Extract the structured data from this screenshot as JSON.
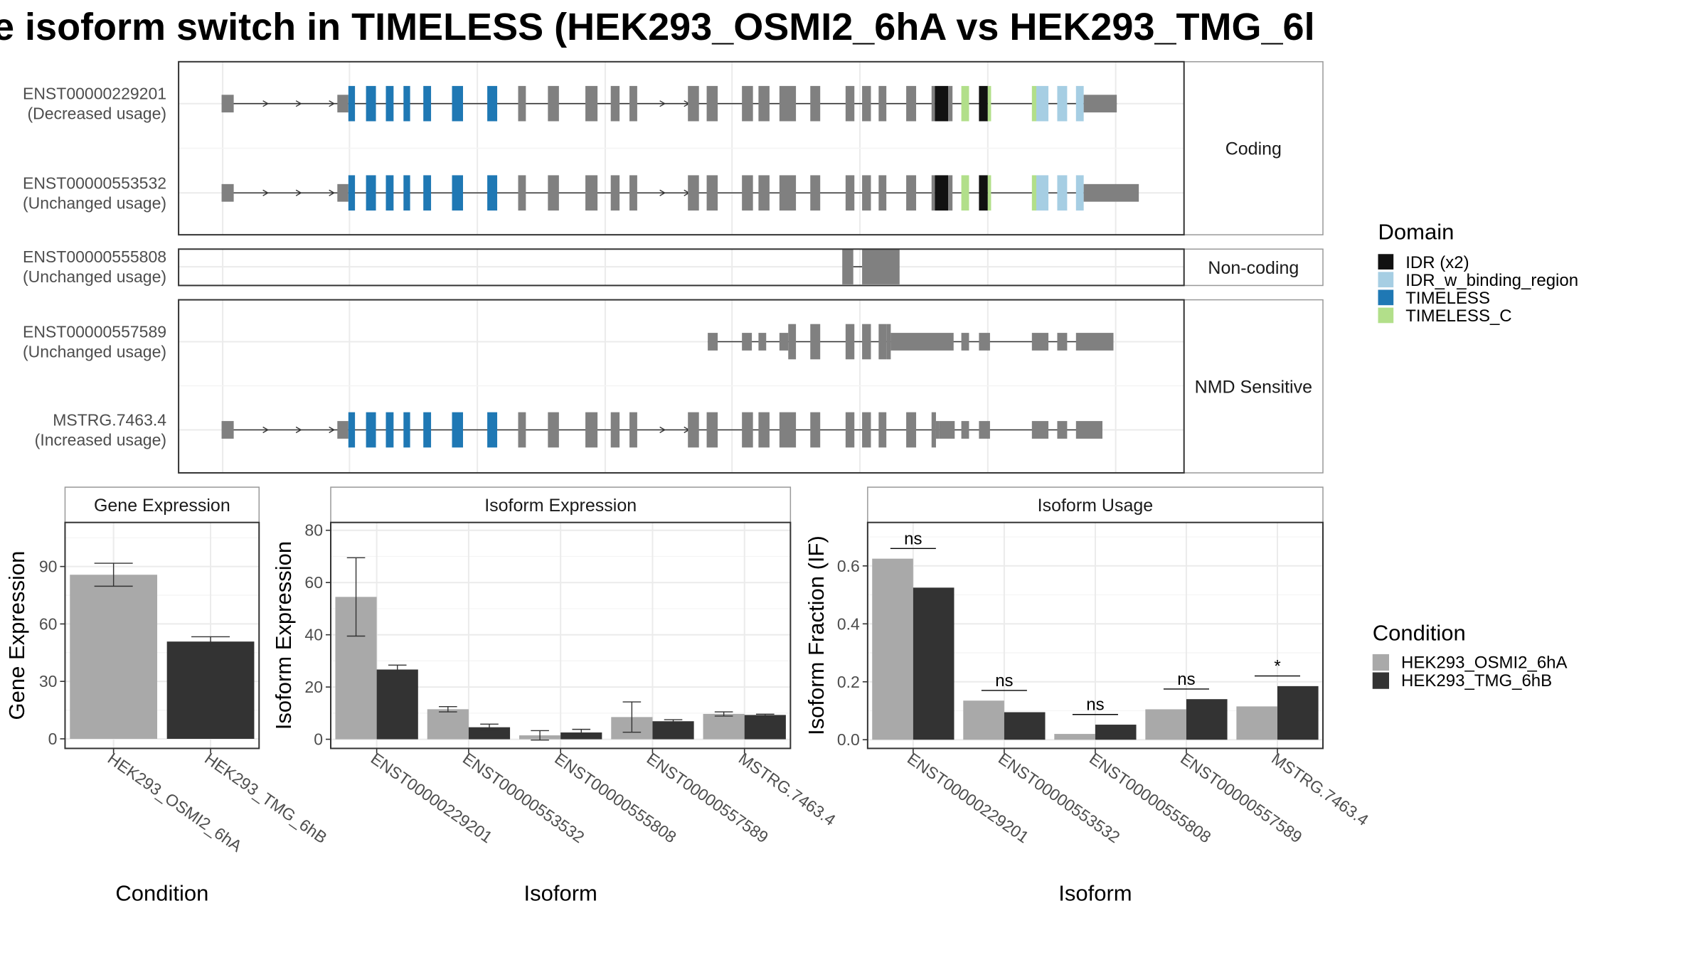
{
  "colors": {
    "exon": "#808080",
    "intron": "#333333",
    "panel_border": "#333333",
    "strip_bg": "#ffffff",
    "strip_border": "#999999",
    "grid": "#ebebeb",
    "cond1": "#a9a9a9",
    "cond2": "#333333",
    "domains": {
      "IDR (x2)": "#111111",
      "IDR_w_binding_region": "#a6cee3",
      "TIMELESS": "#1f78b4",
      "TIMELESS_C": "#b2df8a"
    }
  },
  "chart_data": [
    {
      "type": "table",
      "kind": "transcript-structure",
      "title": "e isoform switch in TIMELESS (HEK293_OSMI2_6hA vs HEK293_TMG_6l",
      "legend_title": "Domain",
      "legend_placement": "right",
      "legend": [
        "IDR (x2)",
        "IDR_w_binding_region",
        "TIMELESS",
        "TIMELESS_C"
      ],
      "facets": [
        {
          "label": "Coding",
          "transcripts": [
            {
              "id": "ENST00000229201",
              "usage": "(Decreased usage)",
              "template": "full_coding",
              "last_exon_end": 1013
            },
            {
              "id": "ENST00000553532",
              "usage": "(Unchanged usage)",
              "template": "full_coding",
              "last_exon_end": 1033
            }
          ]
        },
        {
          "label": "Non-coding",
          "transcripts": [
            {
              "id": "ENST00000555808",
              "usage": "(Unchanged usage)",
              "template": "noncoding"
            }
          ]
        },
        {
          "label": "NMD Sensitive",
          "transcripts": [
            {
              "id": "ENST00000557589",
              "usage": "(Unchanged usage)",
              "template": "nmd_partial"
            },
            {
              "id": "MSTRG.7463.4",
              "usage": "(Increased usage)",
              "template": "nmd_full"
            }
          ]
        }
      ],
      "templates": {
        "full_coding": {
          "intron_start": 203,
          "intron_end": 1013,
          "arrows": [
            243,
            273,
            303,
            603,
            625
          ],
          "exons": [
            {
              "s": 201,
              "e": 212,
              "t": "utr"
            },
            {
              "s": 306,
              "e": 316,
              "t": "utr"
            },
            {
              "s": 316,
              "e": 322,
              "t": "cds",
              "d": "TIMELESS"
            },
            {
              "s": 332,
              "e": 341,
              "t": "cds",
              "d": "TIMELESS"
            },
            {
              "s": 350,
              "e": 357,
              "t": "cds",
              "d": "TIMELESS"
            },
            {
              "s": 366,
              "e": 372,
              "t": "cds",
              "d": "TIMELESS"
            },
            {
              "s": 384,
              "e": 391,
              "t": "cds",
              "d": "TIMELESS"
            },
            {
              "s": 410,
              "e": 420,
              "t": "cds",
              "d": "TIMELESS"
            },
            {
              "s": 442,
              "e": 451,
              "t": "cds",
              "d": "TIMELESS"
            },
            {
              "s": 470,
              "e": 477,
              "t": "cds"
            },
            {
              "s": 497,
              "e": 507,
              "t": "cds"
            },
            {
              "s": 531,
              "e": 542,
              "t": "cds"
            },
            {
              "s": 554,
              "e": 562,
              "t": "cds"
            },
            {
              "s": 571,
              "e": 578,
              "t": "cds"
            },
            {
              "s": 624,
              "e": 634,
              "t": "cds"
            },
            {
              "s": 641,
              "e": 651,
              "t": "cds"
            },
            {
              "s": 673,
              "e": 683,
              "t": "cds"
            },
            {
              "s": 688,
              "e": 698,
              "t": "cds"
            },
            {
              "s": 707,
              "e": 722,
              "t": "cds"
            },
            {
              "s": 735,
              "e": 744,
              "t": "cds"
            },
            {
              "s": 767,
              "e": 775,
              "t": "cds"
            },
            {
              "s": 782,
              "e": 790,
              "t": "cds"
            },
            {
              "s": 797,
              "e": 804,
              "t": "cds"
            },
            {
              "s": 822,
              "e": 831,
              "t": "cds"
            },
            {
              "s": 845,
              "e": 848,
              "t": "cds"
            },
            {
              "s": 848,
              "e": 860,
              "t": "cds",
              "d": "IDR (x2)"
            },
            {
              "s": 860,
              "e": 864,
              "t": "cds"
            },
            {
              "s": 872,
              "e": 879,
              "t": "cds",
              "d": "TIMELESS_C"
            },
            {
              "s": 888,
              "e": 896,
              "t": "cds",
              "d": "IDR (x2)"
            },
            {
              "s": 896,
              "e": 899,
              "t": "cds",
              "d": "TIMELESS_C"
            },
            {
              "s": 936,
              "e": 940,
              "t": "cds",
              "d": "TIMELESS_C"
            },
            {
              "s": 940,
              "e": 951,
              "t": "cds",
              "d": "IDR_w_binding_region"
            },
            {
              "s": 959,
              "e": 968,
              "t": "cds",
              "d": "IDR_w_binding_region"
            },
            {
              "s": 976,
              "e": 983,
              "t": "cds",
              "d": "IDR_w_binding_region"
            },
            {
              "s": 983,
              "e": 1013,
              "t": "utr"
            }
          ]
        },
        "noncoding": {
          "intron_start": 774,
          "intron_end": 782,
          "arrows": [],
          "exons": [
            {
              "s": 764,
              "e": 774,
              "t": "cds"
            },
            {
              "s": 782,
              "e": 816,
              "t": "cds"
            }
          ]
        },
        "nmd_partial": {
          "intron_start": 642,
          "intron_end": 1010,
          "arrows": [],
          "exons": [
            {
              "s": 642,
              "e": 651,
              "t": "utr"
            },
            {
              "s": 673,
              "e": 682,
              "t": "utr"
            },
            {
              "s": 688,
              "e": 695,
              "t": "utr"
            },
            {
              "s": 707,
              "e": 715,
              "t": "utr"
            },
            {
              "s": 715,
              "e": 722,
              "t": "cds"
            },
            {
              "s": 735,
              "e": 744,
              "t": "cds"
            },
            {
              "s": 767,
              "e": 775,
              "t": "cds"
            },
            {
              "s": 782,
              "e": 790,
              "t": "cds"
            },
            {
              "s": 797,
              "e": 804,
              "t": "cds"
            },
            {
              "s": 804,
              "e": 808,
              "t": "cds"
            },
            {
              "s": 808,
              "e": 865,
              "t": "utr"
            },
            {
              "s": 872,
              "e": 879,
              "t": "utr"
            },
            {
              "s": 888,
              "e": 898,
              "t": "utr"
            },
            {
              "s": 936,
              "e": 951,
              "t": "utr"
            },
            {
              "s": 959,
              "e": 968,
              "t": "utr"
            },
            {
              "s": 976,
              "e": 1010,
              "t": "utr"
            }
          ]
        },
        "nmd_full": {
          "intron_start": 203,
          "intron_end": 1000,
          "arrows": [
            243,
            273,
            303,
            603,
            625
          ],
          "exons": [
            {
              "s": 201,
              "e": 212,
              "t": "utr"
            },
            {
              "s": 306,
              "e": 316,
              "t": "utr"
            },
            {
              "s": 316,
              "e": 322,
              "t": "cds",
              "d": "TIMELESS"
            },
            {
              "s": 332,
              "e": 341,
              "t": "cds",
              "d": "TIMELESS"
            },
            {
              "s": 350,
              "e": 357,
              "t": "cds",
              "d": "TIMELESS"
            },
            {
              "s": 366,
              "e": 372,
              "t": "cds",
              "d": "TIMELESS"
            },
            {
              "s": 384,
              "e": 391,
              "t": "cds",
              "d": "TIMELESS"
            },
            {
              "s": 410,
              "e": 420,
              "t": "cds",
              "d": "TIMELESS"
            },
            {
              "s": 442,
              "e": 451,
              "t": "cds",
              "d": "TIMELESS"
            },
            {
              "s": 470,
              "e": 477,
              "t": "cds"
            },
            {
              "s": 497,
              "e": 507,
              "t": "cds"
            },
            {
              "s": 531,
              "e": 542,
              "t": "cds"
            },
            {
              "s": 554,
              "e": 562,
              "t": "cds"
            },
            {
              "s": 571,
              "e": 578,
              "t": "cds"
            },
            {
              "s": 624,
              "e": 634,
              "t": "cds"
            },
            {
              "s": 641,
              "e": 651,
              "t": "cds"
            },
            {
              "s": 673,
              "e": 683,
              "t": "cds"
            },
            {
              "s": 688,
              "e": 698,
              "t": "cds"
            },
            {
              "s": 707,
              "e": 722,
              "t": "cds"
            },
            {
              "s": 735,
              "e": 744,
              "t": "cds"
            },
            {
              "s": 767,
              "e": 775,
              "t": "cds"
            },
            {
              "s": 782,
              "e": 790,
              "t": "cds"
            },
            {
              "s": 797,
              "e": 804,
              "t": "cds"
            },
            {
              "s": 822,
              "e": 831,
              "t": "cds"
            },
            {
              "s": 845,
              "e": 849,
              "t": "cds"
            },
            {
              "s": 849,
              "e": 852,
              "t": "utr"
            },
            {
              "s": 852,
              "e": 866,
              "t": "utr"
            },
            {
              "s": 872,
              "e": 879,
              "t": "utr"
            },
            {
              "s": 888,
              "e": 898,
              "t": "utr"
            },
            {
              "s": 936,
              "e": 951,
              "t": "utr"
            },
            {
              "s": 959,
              "e": 968,
              "t": "utr"
            },
            {
              "s": 976,
              "e": 1000,
              "t": "utr"
            }
          ]
        }
      }
    },
    {
      "type": "bar",
      "strip": "Gene Expression",
      "xlabel": "Condition",
      "ylabel": "Gene Expression",
      "ylim": [
        -5,
        113
      ],
      "yticks": [
        0,
        30,
        60,
        90
      ],
      "grid": true,
      "categories": [
        "HEK293_OSMI2_6hA",
        "HEK293_TMG_6hB"
      ],
      "series": [
        {
          "name": "HEK293_OSMI2_6hA",
          "values": [
            85.7,
            null
          ],
          "errors": [
            6.0,
            null
          ]
        },
        {
          "name": "HEK293_TMG_6hB",
          "values": [
            null,
            50.8
          ],
          "errors": [
            null,
            2.5
          ]
        }
      ]
    },
    {
      "type": "bar",
      "strip": "Isoform Expression",
      "xlabel": "Isoform",
      "ylabel": "Isoform Expression",
      "ylim": [
        -3.5,
        83
      ],
      "yticks": [
        0,
        20,
        40,
        60,
        80
      ],
      "grid": true,
      "categories": [
        "ENST00000229201",
        "ENST00000553532",
        "ENST00000555808",
        "ENST00000557589",
        "MSTRG.7463.4"
      ],
      "series": [
        {
          "name": "HEK293_OSMI2_6hA",
          "values": [
            54.5,
            11.5,
            1.5,
            8.5,
            9.7
          ],
          "errors": [
            15.0,
            1.0,
            1.8,
            5.8,
            0.8
          ]
        },
        {
          "name": "HEK293_TMG_6hB",
          "values": [
            26.7,
            4.6,
            2.6,
            6.9,
            9.3
          ],
          "errors": [
            1.7,
            1.2,
            1.2,
            0.6,
            0.3
          ]
        }
      ]
    },
    {
      "type": "bar",
      "strip": "Isoform Usage",
      "xlabel": "Isoform",
      "ylabel": "Isoform Fraction (IF)",
      "ylim": [
        -0.03,
        0.75
      ],
      "yticks": [
        0.0,
        0.2,
        0.4,
        0.6
      ],
      "ytick_labels": [
        "0.0",
        "0.2",
        "0.4",
        "0.6"
      ],
      "grid": true,
      "categories": [
        "ENST00000229201",
        "ENST00000553532",
        "ENST00000555808",
        "ENST00000557589",
        "MSTRG.7463.4"
      ],
      "series": [
        {
          "name": "HEK293_OSMI2_6hA",
          "values": [
            0.625,
            0.135,
            0.02,
            0.105,
            0.115
          ]
        },
        {
          "name": "HEK293_TMG_6hB",
          "values": [
            0.525,
            0.095,
            0.052,
            0.14,
            0.185
          ]
        }
      ],
      "significance": [
        "ns",
        "ns",
        "ns",
        "ns",
        "*"
      ]
    }
  ],
  "condition_legend": {
    "title": "Condition",
    "items": [
      {
        "label": "HEK293_OSMI2_6hA",
        "color": "#a9a9a9"
      },
      {
        "label": "HEK293_TMG_6hB",
        "color": "#333333"
      }
    ]
  }
}
